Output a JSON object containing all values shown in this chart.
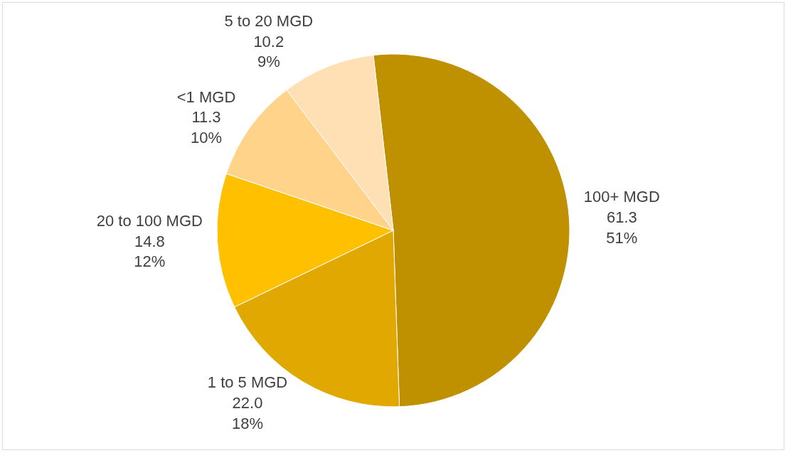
{
  "chart_data": {
    "type": "pie",
    "categories": [
      "100+ MGD",
      "1 to 5 MGD",
      "20 to 100 MGD",
      "<1 MGD",
      "5 to 20 MGD"
    ],
    "values": [
      61.3,
      22.0,
      14.8,
      11.3,
      10.2
    ],
    "value_labels": [
      "61.3\n51%",
      "22.0\n18%",
      "14.8\n12%",
      "11.3\n10%",
      "10.2\n9%"
    ],
    "colors": [
      "#bf9000",
      "#e0a800",
      "#ffc000",
      "#ffd38a",
      "#ffe0b5"
    ],
    "legend": false
  }
}
